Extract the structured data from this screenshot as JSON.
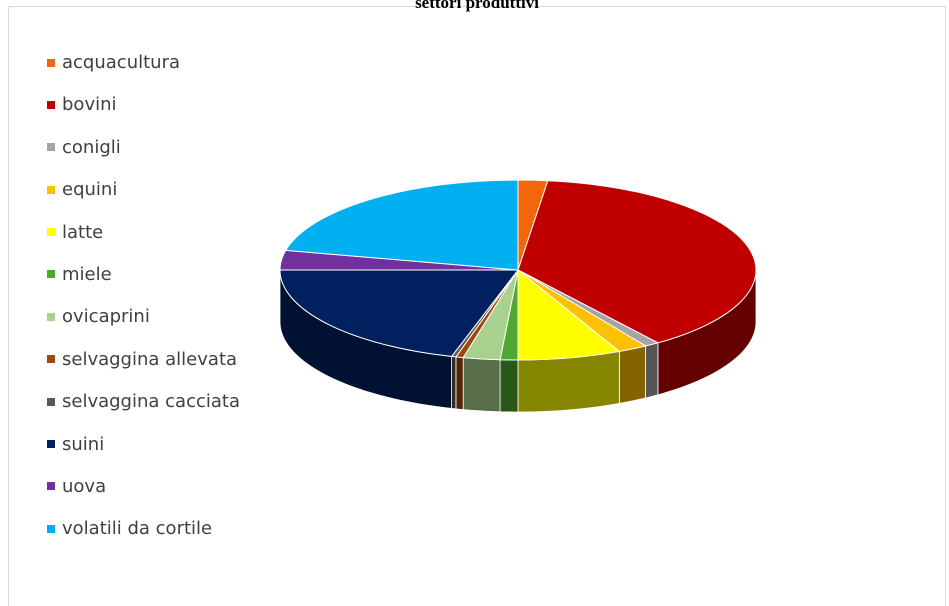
{
  "chart_data": {
    "type": "pie",
    "title": "settori produttivi",
    "legend_position": "left",
    "categories": [
      "acquacultura",
      "bovini",
      "conigli",
      "equini",
      "latte",
      "miele",
      "ovicaprini",
      "selvaggina allevata",
      "selvaggina cacciata",
      "suini",
      "uova",
      "volatili da cortile"
    ],
    "values": [
      2.0,
      38.0,
      1.0,
      2.0,
      7.0,
      1.2,
      2.5,
      0.5,
      0.3,
      20.5,
      3.5,
      21.5
    ],
    "colors": [
      "#F4650C",
      "#C00000",
      "#A5A5A5",
      "#FFC000",
      "#FFFF00",
      "#4EA72E",
      "#A9D18E",
      "#9E480E",
      "#595959",
      "#002060",
      "#7030A0",
      "#00B0F0"
    ]
  }
}
